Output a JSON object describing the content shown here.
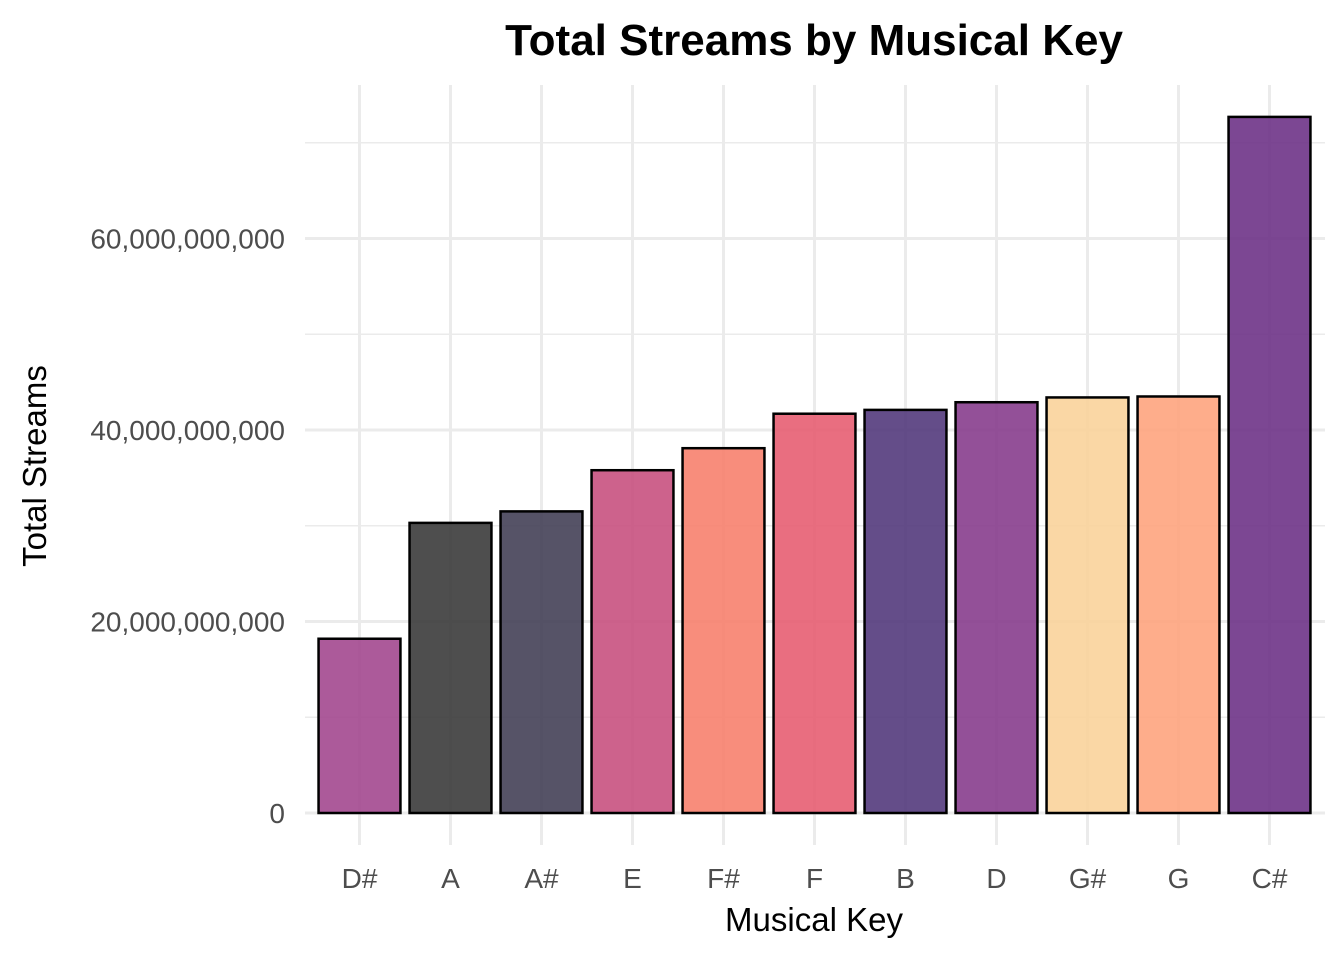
{
  "chart_data": {
    "type": "bar",
    "title": "Total Streams by Musical Key",
    "xlabel": "Musical Key",
    "ylabel": "Total Streams",
    "categories": [
      "D#",
      "A",
      "A#",
      "E",
      "F#",
      "F",
      "B",
      "D",
      "G#",
      "G",
      "C#"
    ],
    "values": [
      18200000000,
      30300000000,
      31500000000,
      35800000000,
      38100000000,
      41700000000,
      42100000000,
      42900000000,
      43400000000,
      43500000000,
      72700000000
    ],
    "colors": [
      "#a3488f",
      "#3b3b3b",
      "#444056",
      "#c8517f",
      "#f7816e",
      "#e75e72",
      "#533a7c",
      "#873d8d",
      "#fad39b",
      "#fea47e",
      "#6e3387"
    ],
    "bar_opacity": 0.9,
    "ylim": [
      0,
      76000000000
    ],
    "yticks": [
      0,
      20000000000,
      40000000000,
      60000000000
    ],
    "ytick_labels": [
      "0",
      "20,000,000,000",
      "40,000,000,000",
      "60,000,000,000"
    ],
    "grid": true,
    "legend": "none"
  }
}
